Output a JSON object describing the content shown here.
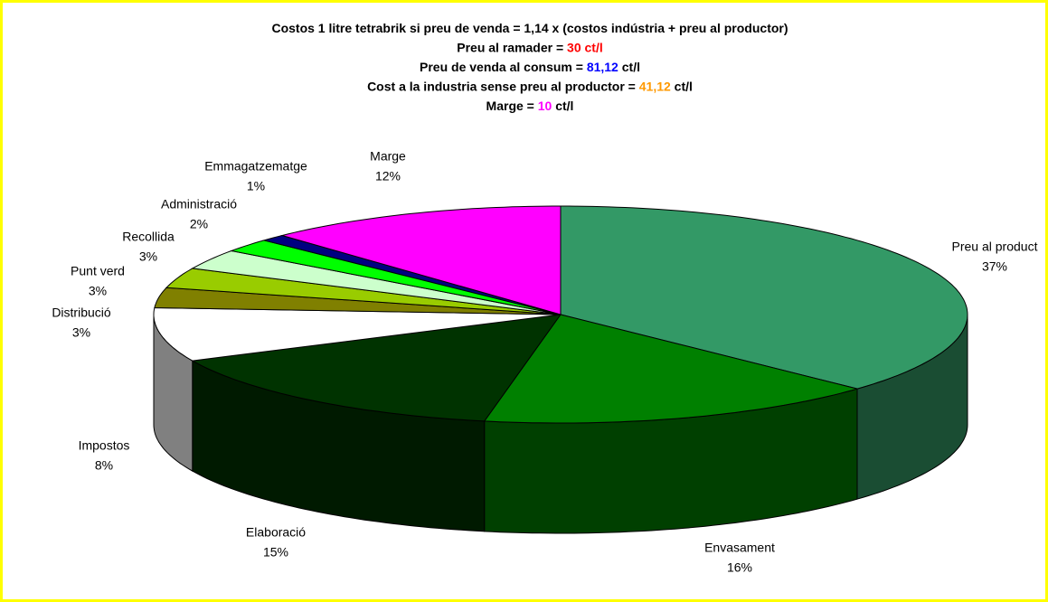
{
  "chart_data": {
    "type": "pie3d",
    "title": [
      [
        {
          "text": "Costos 1 litre tetrabrik si preu de venda = 1,14 x (costos indústria + preu al productor)"
        }
      ],
      [
        {
          "text": "Preu al ramader = "
        },
        {
          "text": "30 ct/l",
          "color": "#ff0000"
        }
      ],
      [
        {
          "text": "Preu de venda al consum = "
        },
        {
          "text": "81,12",
          "color": "#0000ff"
        },
        {
          "text": " ct/l"
        }
      ],
      [
        {
          "text": "Cost a la industria sense preu al productor = "
        },
        {
          "text": "41,12",
          "color": "#ff9900"
        },
        {
          "text": " ct/l"
        }
      ],
      [
        {
          "text": "Marge = "
        },
        {
          "text": "10",
          "color": "#ff00ff"
        },
        {
          "text": " ct/l"
        }
      ]
    ],
    "labels": [
      "Preu al product",
      "Envasament",
      "Elaboració",
      "Impostos",
      "Distribució",
      "Punt verd",
      "Recollida",
      "Administració",
      "Emmagatzematge",
      "Marge"
    ],
    "values": [
      37,
      16,
      15,
      8,
      3,
      3,
      3,
      2,
      1,
      12
    ],
    "value_labels": [
      "37%",
      "16%",
      "15%",
      "8%",
      "3%",
      "3%",
      "3%",
      "2%",
      "1%",
      "12%"
    ],
    "colors": [
      "#339966",
      "#008000",
      "#003300",
      "#ffffff",
      "#808000",
      "#99cc00",
      "#ccffcc",
      "#00ff00",
      "#000080",
      "#ff00ff"
    ]
  }
}
